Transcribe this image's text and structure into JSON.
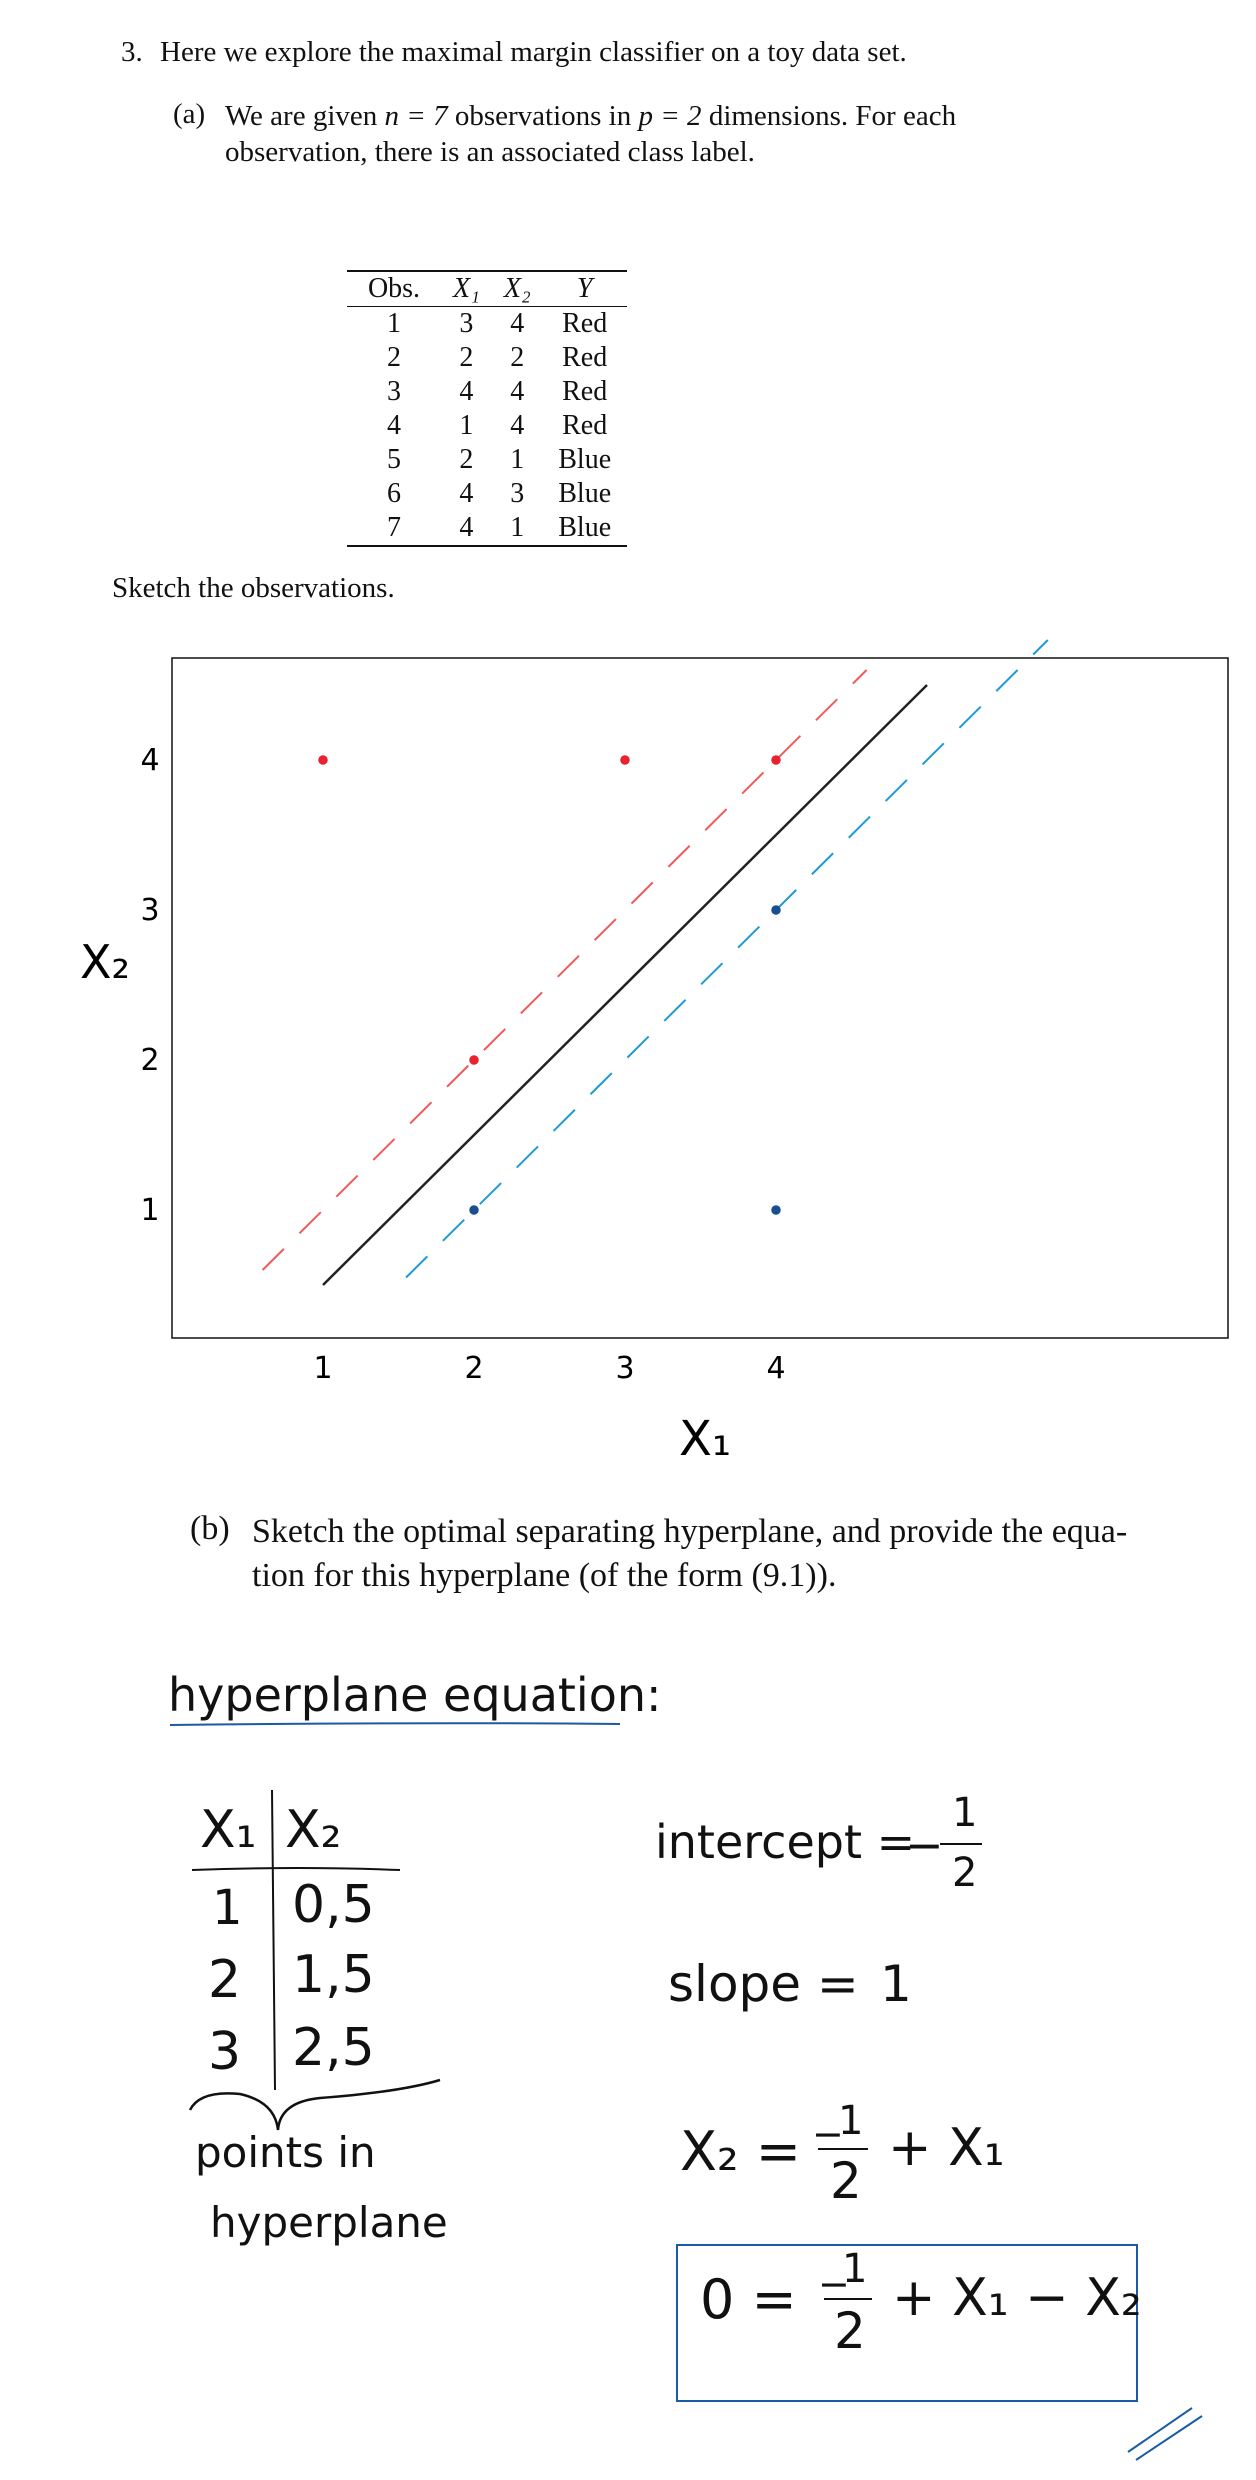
{
  "question": {
    "number": "3.",
    "text": "Here we explore the maximal margin classifier on a toy data set."
  },
  "part_a": {
    "label": "(a)",
    "text_line1_pre": "We are given ",
    "text_line1_n": "n = 7",
    "text_line1_mid": " observations in ",
    "text_line1_p": "p = 2",
    "text_line1_post": " dimensions. For each",
    "text_line2": "observation, there is an associated class label."
  },
  "table": {
    "headers": [
      "Obs.",
      "X₁",
      "X₂",
      "Y"
    ],
    "rows": [
      [
        "1",
        "3",
        "4",
        "Red"
      ],
      [
        "2",
        "2",
        "2",
        "Red"
      ],
      [
        "3",
        "4",
        "4",
        "Red"
      ],
      [
        "4",
        "1",
        "4",
        "Red"
      ],
      [
        "5",
        "2",
        "1",
        "Blue"
      ],
      [
        "6",
        "4",
        "3",
        "Blue"
      ],
      [
        "7",
        "4",
        "1",
        "Blue"
      ]
    ]
  },
  "sketch_prompt": "Sketch the observations.",
  "chart_data": {
    "type": "scatter",
    "xlabel": "X₁",
    "ylabel": "X₂",
    "xticks": [
      "1",
      "2",
      "3",
      "4"
    ],
    "yticks": [
      "1",
      "2",
      "3",
      "4"
    ],
    "series": [
      {
        "name": "Red",
        "color": "#e8222e",
        "points": [
          [
            3,
            4
          ],
          [
            2,
            2
          ],
          [
            4,
            4
          ],
          [
            1,
            4
          ]
        ]
      },
      {
        "name": "Blue",
        "color": "#1a4f8f",
        "points": [
          [
            2,
            1
          ],
          [
            4,
            3
          ],
          [
            4,
            1
          ]
        ]
      }
    ],
    "lines": [
      {
        "kind": "hyperplane",
        "style": "solid",
        "color": "#222222",
        "intercept": -0.5,
        "slope": 1,
        "x_range": [
          1,
          5
        ]
      },
      {
        "kind": "margin",
        "style": "dashed",
        "color": "#ef5b5b",
        "intercept": 0,
        "slope": 1,
        "x_range": [
          0.6,
          4.6
        ]
      },
      {
        "kind": "margin",
        "style": "dashed",
        "color": "#1e9bd7",
        "intercept": -1,
        "slope": 1,
        "x_range": [
          1.55,
          5.8
        ]
      }
    ]
  },
  "part_b": {
    "label": "(b)",
    "line1": "Sketch the optimal separating hyperplane, and provide the equa-",
    "line2": "tion for this hyperplane (of the form (9.1))."
  },
  "notes": {
    "heading": "hyperplane equation:",
    "points_table": {
      "headers": [
        "X₁",
        "X₂"
      ],
      "rows": [
        [
          "1",
          "0,5"
        ],
        [
          "2",
          "1,5"
        ],
        [
          "3",
          "2,5"
        ]
      ]
    },
    "brace_caption_line1": "points in",
    "brace_caption_line2": "hyperplane",
    "intercept_label": "intercept =",
    "intercept_value_sign": "−",
    "intercept_num": "1",
    "intercept_den": "2",
    "slope_label": "slope =",
    "slope_value": "1",
    "eq1_lhs": "X₂ =",
    "eq1_sign": "−",
    "eq1_num": "1",
    "eq1_den": "2",
    "eq1_rhs": "+ X₁",
    "eq2_lhs": "0 =",
    "eq2_sign": "−",
    "eq2_num": "1",
    "eq2_den": "2",
    "eq2_rhs": "+ X₁ − X₂",
    "box_color": "#1a5aa6"
  }
}
